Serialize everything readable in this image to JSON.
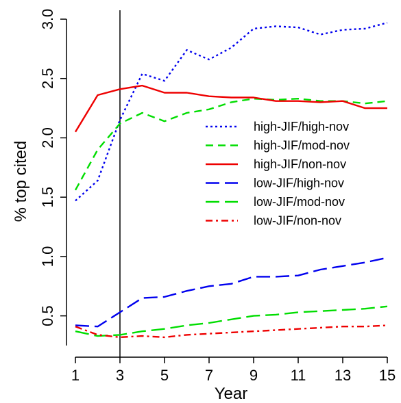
{
  "chart_data": {
    "type": "line",
    "xlabel": "Year",
    "ylabel": "% top cited",
    "xlim": [
      1,
      15
    ],
    "ylim": [
      0.25,
      3.0
    ],
    "x_ticks": [
      1,
      3,
      5,
      7,
      9,
      11,
      13,
      15
    ],
    "y_ticks": [
      0.5,
      1.0,
      1.5,
      2.0,
      2.5,
      3.0
    ],
    "x_tick_labels": [
      "1",
      "3",
      "5",
      "7",
      "9",
      "11",
      "13",
      "15"
    ],
    "y_tick_labels": [
      "0.5",
      "1.0",
      "1.5",
      "2.0",
      "2.5",
      "3.0"
    ],
    "reference_line_x": 3,
    "grid": false,
    "legend_position": "right",
    "x": [
      1,
      2,
      3,
      4,
      5,
      6,
      7,
      8,
      9,
      10,
      11,
      12,
      13,
      14,
      15
    ],
    "series": [
      {
        "name": "high-JIF/high-nov",
        "color": "#0000ee",
        "dash": "dotted",
        "values": [
          1.47,
          1.64,
          2.15,
          2.54,
          2.48,
          2.74,
          2.66,
          2.76,
          2.92,
          2.94,
          2.93,
          2.87,
          2.91,
          2.92,
          2.97
        ]
      },
      {
        "name": "high-JIF/mod-nov",
        "color": "#00dd00",
        "dash": "dashed",
        "values": [
          1.56,
          1.9,
          2.12,
          2.21,
          2.14,
          2.21,
          2.24,
          2.3,
          2.33,
          2.32,
          2.33,
          2.31,
          2.31,
          2.29,
          2.31
        ]
      },
      {
        "name": "high-JIF/non-nov",
        "color": "#ee0000",
        "dash": "solid",
        "values": [
          2.05,
          2.36,
          2.41,
          2.44,
          2.38,
          2.38,
          2.35,
          2.34,
          2.34,
          2.31,
          2.31,
          2.3,
          2.31,
          2.25,
          2.25
        ]
      },
      {
        "name": "low-JIF/high-nov",
        "color": "#0000ee",
        "dash": "longdash",
        "values": [
          0.42,
          0.41,
          0.53,
          0.65,
          0.66,
          0.71,
          0.75,
          0.77,
          0.83,
          0.83,
          0.84,
          0.89,
          0.92,
          0.95,
          0.99
        ]
      },
      {
        "name": "low-JIF/mod-nov",
        "color": "#00dd00",
        "dash": "longdash",
        "values": [
          0.37,
          0.33,
          0.34,
          0.37,
          0.39,
          0.42,
          0.44,
          0.47,
          0.5,
          0.51,
          0.53,
          0.54,
          0.55,
          0.56,
          0.58
        ]
      },
      {
        "name": "low-JIF/non-nov",
        "color": "#ee0000",
        "dash": "dashdot",
        "values": [
          0.41,
          0.34,
          0.32,
          0.33,
          0.32,
          0.34,
          0.35,
          0.36,
          0.37,
          0.38,
          0.39,
          0.4,
          0.41,
          0.41,
          0.42
        ]
      }
    ]
  }
}
